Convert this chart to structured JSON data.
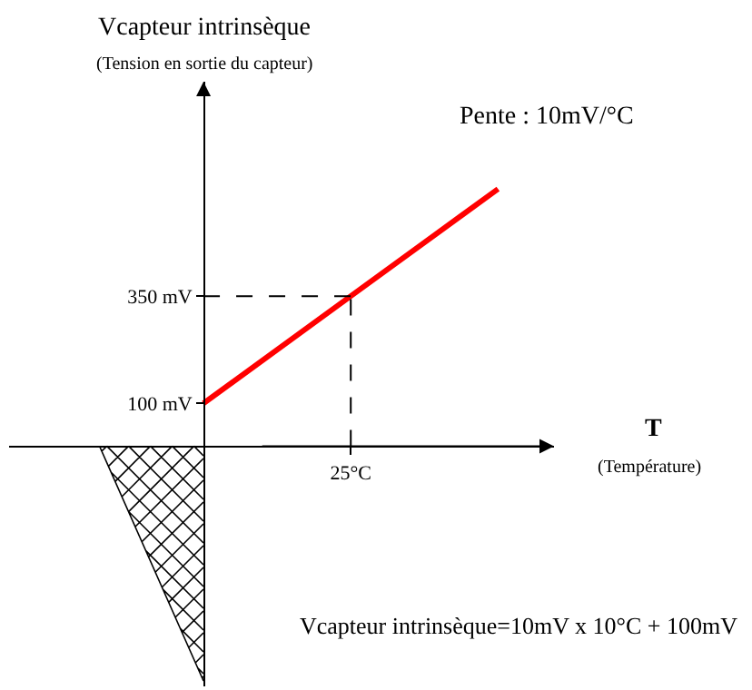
{
  "chart_data": {
    "type": "line",
    "ylabel": "Vcapteur intrinsèque",
    "xlabel": "T",
    "annotations": [
      "(Tension en sortie du capteur)",
      "(Température)",
      "Pente : 10mV/°C",
      "Vcapteur intrinsèque=10mV x 10°C + 100mV"
    ],
    "categories": [
      null,
      "25°C",
      null
    ],
    "series": [
      {
        "color": "#ff0000",
        "values": [
          100,
          350,
          600
        ]
      }
    ],
    "ylim": [
      -560,
      850
    ],
    "yticks": [
      {
        "value": 100,
        "label": "100 mV"
      },
      {
        "value": 350,
        "label": "350 mV"
      }
    ],
    "ref_lines": [
      {
        "axis": "x",
        "value": "25°C",
        "line_style": "dashed"
      },
      {
        "axis": "y",
        "value": 350,
        "line_style": "dashed"
      }
    ],
    "grid": false,
    "marker": "none",
    "line_style": "solid"
  }
}
